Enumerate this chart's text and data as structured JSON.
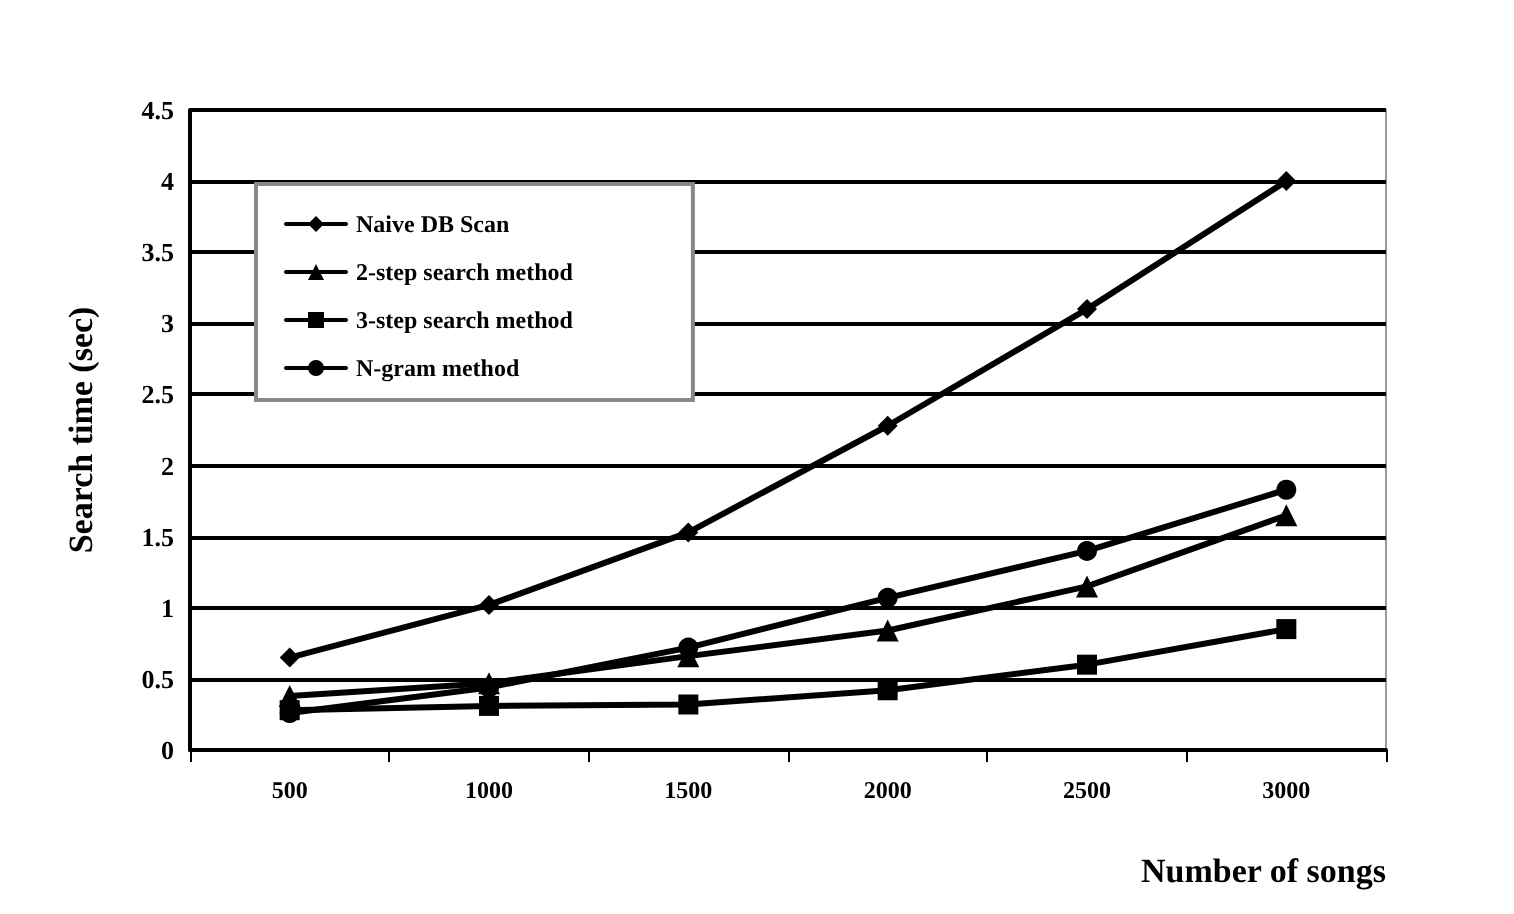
{
  "chart_data": {
    "type": "line",
    "xlabel": "Number of songs",
    "ylabel": "Search time (sec)",
    "categories": [
      "500",
      "1000",
      "1500",
      "2000",
      "2500",
      "3000"
    ],
    "series": [
      {
        "name": "Naive DB Scan",
        "color": "#000000",
        "marker": "diamond",
        "values": [
          0.65,
          1.02,
          1.53,
          2.28,
          3.1,
          4.0
        ]
      },
      {
        "name": "2-step search method",
        "color": "#000000",
        "marker": "triangle",
        "values": [
          0.38,
          0.47,
          0.66,
          0.84,
          1.15,
          1.65
        ]
      },
      {
        "name": "3-step search method",
        "color": "#000000",
        "marker": "square",
        "values": [
          0.28,
          0.31,
          0.32,
          0.42,
          0.6,
          0.85
        ]
      },
      {
        "name": "N-gram method",
        "color": "#000000",
        "marker": "circle",
        "values": [
          0.26,
          0.44,
          0.72,
          1.07,
          1.4,
          1.83
        ]
      }
    ],
    "ylim": [
      0,
      4.5
    ],
    "yticks": [
      0,
      0.5,
      1,
      1.5,
      2,
      2.5,
      3,
      3.5,
      4,
      4.5
    ],
    "grid": "y",
    "legend": "top left",
    "line_style": "solid"
  }
}
